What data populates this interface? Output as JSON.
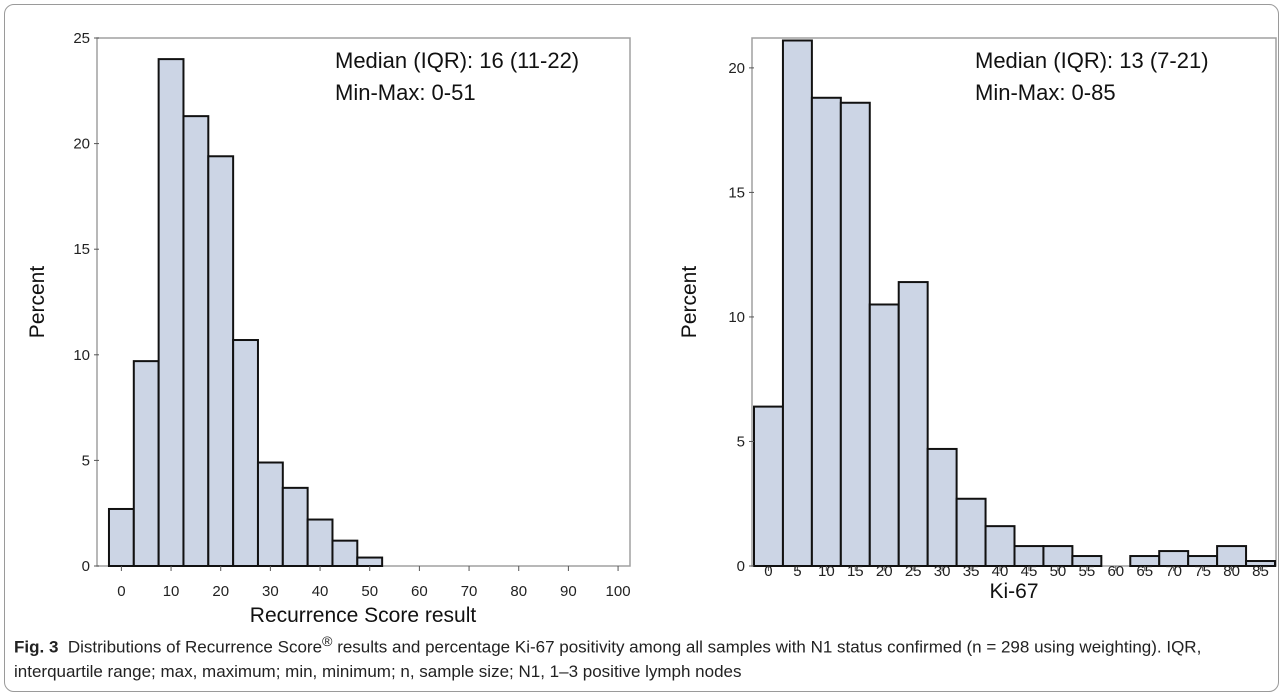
{
  "caption": {
    "label": "Fig. 3",
    "text_before_mark": "Distributions of Recurrence Score",
    "registered_mark": "®",
    "text_after_mark": " results and percentage Ki-67 positivity among all samples with N1 status confirmed (n = 298 using weighting). IQR, interquartile range; max, maximum; min, minimum; n, sample size; N1, 1–3 positive lymph nodes"
  },
  "colors": {
    "bar_fill": "#ccd5e5",
    "bar_stroke": "#111111",
    "axis": "#a0a0a0"
  },
  "chart_data": [
    {
      "type": "bar",
      "bin_width": 5,
      "bin_starts": [
        -5,
        0,
        5,
        10,
        15,
        20,
        25,
        30,
        35,
        40,
        45,
        50
      ],
      "values": [
        2.7,
        9.7,
        24.0,
        21.3,
        19.4,
        10.7,
        4.9,
        3.7,
        2.2,
        1.2,
        0.4
      ],
      "bins": [
        -2.5,
        2.5,
        7.5,
        12.5,
        17.5,
        22.5,
        27.5,
        32.5,
        37.5,
        42.5,
        47.5
      ],
      "xlim": [
        -3.5,
        102
      ],
      "ylim": [
        0,
        25
      ],
      "xticks": [
        0,
        10,
        20,
        30,
        40,
        50,
        60,
        70,
        80,
        90,
        100
      ],
      "yticks": [
        0,
        5,
        10,
        15,
        20,
        25
      ],
      "xlabel": "Recurrence Score result",
      "ylabel": "Percent",
      "annotations": [
        "Median (IQR): 16  (11-22)",
        "Min-Max: 0-51"
      ]
    },
    {
      "type": "bar",
      "bins": [
        -2.5,
        2.5,
        7.5,
        12.5,
        17.5,
        22.5,
        27.5,
        32.5,
        37.5,
        42.5,
        47.5,
        52.5,
        57.5,
        62.5,
        67.5,
        72.5,
        77.5,
        82.5
      ],
      "values": [
        6.4,
        21.1,
        18.8,
        18.6,
        10.5,
        11.4,
        4.7,
        2.7,
        1.6,
        0.8,
        0.8,
        0.4,
        0,
        0.4,
        0.6,
        0.4,
        0.8,
        0.2
      ],
      "xlim": [
        -2.5,
        87.5
      ],
      "ylim": [
        0,
        21.2
      ],
      "xticks": [
        0,
        5,
        10,
        15,
        20,
        25,
        30,
        35,
        40,
        45,
        50,
        55,
        60,
        65,
        70,
        75,
        80,
        85
      ],
      "yticks": [
        0,
        5,
        10,
        15,
        20
      ],
      "xlabel": "Ki-67",
      "ylabel": "Percent",
      "annotations": [
        "Median (IQR): 13  (7-21)",
        "Min-Max: 0-85"
      ]
    }
  ]
}
